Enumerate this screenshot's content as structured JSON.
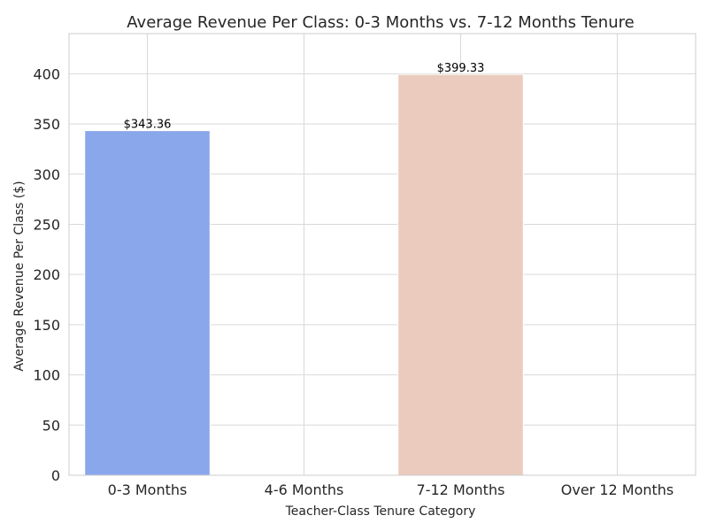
{
  "chart_data": {
    "type": "bar",
    "title": "Average Revenue Per Class: 0-3 Months vs. 7-12 Months Tenure",
    "xlabel": "Teacher-Class Tenure Category",
    "ylabel": "Average Revenue Per Class ($)",
    "categories": [
      "0-3 Months",
      "4-6 Months",
      "7-12 Months",
      "Over 12 Months"
    ],
    "values": [
      343.36,
      null,
      399.33,
      null
    ],
    "data_labels": [
      "$343.36",
      "",
      "$399.33",
      ""
    ],
    "colors": [
      "#8aa7ec",
      null,
      "#eacbbd",
      null
    ],
    "ylim": [
      0,
      440
    ],
    "yticks": [
      0,
      50,
      100,
      150,
      200,
      250,
      300,
      350,
      400
    ],
    "grid": true,
    "grid_axis": "y"
  }
}
